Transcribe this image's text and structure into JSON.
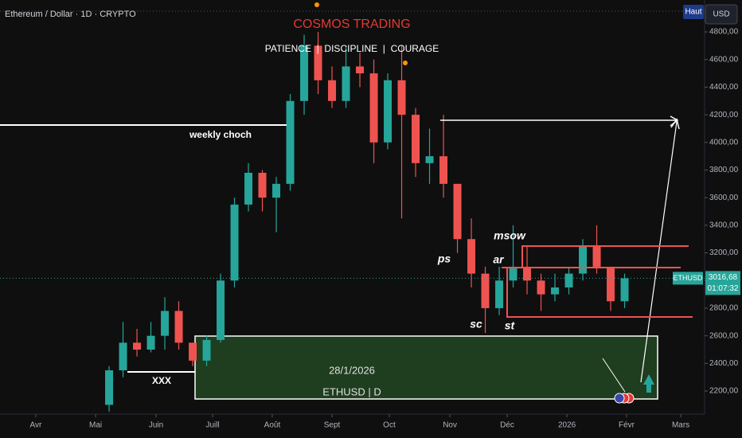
{
  "header": {
    "symbol_title": "Ethereum / Dollar · 1D · CRYPTO",
    "scale_button": "Haut",
    "currency": "USD"
  },
  "chart_data": {
    "type": "candlestick",
    "title": "COSMOS TRADING",
    "subtitle": "PATIENCE  |  DISCIPLINE  |  COURAGE",
    "up_color": "#26a69a",
    "down_color": "#ef5350",
    "open": [
      2100,
      2350,
      2550,
      2500,
      2600,
      2780,
      2550,
      2420,
      2570,
      3000,
      3550,
      3780,
      3600,
      3700,
      4300,
      4700,
      4450,
      4300,
      4550,
      4500,
      4000,
      4450,
      4200,
      3850,
      3900,
      3700,
      3300,
      3050,
      2800,
      3000,
      3100,
      3000,
      2900,
      2950,
      3050,
      3250,
      3100,
      2850
    ],
    "high": [
      2380,
      2700,
      2650,
      2700,
      2880,
      2850,
      2550,
      2600,
      3050,
      3600,
      3850,
      3800,
      3750,
      4350,
      4780,
      4800,
      4550,
      4700,
      4650,
      4600,
      4500,
      4700,
      4250,
      4100,
      4200,
      3700,
      3450,
      3100,
      3100,
      3400,
      3250,
      3050,
      3050,
      3100,
      3300,
      3400,
      3100,
      3050
    ],
    "low": [
      2050,
      2300,
      2450,
      2480,
      2500,
      2500,
      2380,
      2380,
      2550,
      2950,
      3500,
      3500,
      3350,
      3650,
      4200,
      4350,
      4250,
      4250,
      4400,
      3850,
      3950,
      3450,
      3750,
      3700,
      3600,
      3200,
      2950,
      2620,
      2750,
      2950,
      2900,
      2780,
      2850,
      2900,
      3000,
      3050,
      2780,
      2800
    ],
    "close": [
      2350,
      2550,
      2500,
      2600,
      2780,
      2550,
      2420,
      2570,
      3000,
      3550,
      3780,
      3600,
      3700,
      4300,
      4700,
      4450,
      4300,
      4550,
      4500,
      4000,
      4450,
      4200,
      3850,
      3900,
      3700,
      3300,
      3050,
      2800,
      3000,
      3100,
      3000,
      2900,
      2950,
      3050,
      3250,
      3100,
      2850,
      3016.68
    ],
    "xlim": [
      -7.83,
      42.74
    ],
    "xticks": [
      {
        "value": -5.26,
        "label": "Avr"
      },
      {
        "value": -0.97,
        "label": "Mai"
      },
      {
        "value": 3.37,
        "label": "Juin"
      },
      {
        "value": 7.43,
        "label": "Juill"
      },
      {
        "value": 11.71,
        "label": "Août"
      },
      {
        "value": 16,
        "label": "Sept"
      },
      {
        "value": 20.11,
        "label": "Oct"
      },
      {
        "value": 24.46,
        "label": "Nov"
      },
      {
        "value": 28.57,
        "label": "Déc"
      },
      {
        "value": 32.86,
        "label": "2026"
      },
      {
        "value": 37.14,
        "label": "Févr"
      },
      {
        "value": 41.03,
        "label": "Mars"
      }
    ],
    "ylim": [
      2033,
      5031
    ],
    "yticks": [
      {
        "value": 2200,
        "label": "2200,00"
      },
      {
        "value": 2400,
        "label": "2400,00"
      },
      {
        "value": 2600,
        "label": "2600,00"
      },
      {
        "value": 2800,
        "label": "2800,00"
      },
      {
        "value": 3000,
        "label": "3000,00"
      },
      {
        "value": 3200,
        "label": "3200,00"
      },
      {
        "value": 3400,
        "label": "3400,00"
      },
      {
        "value": 3600,
        "label": "3600,00"
      },
      {
        "value": 3800,
        "label": "3800,00"
      },
      {
        "value": 4000,
        "label": "4000,00"
      },
      {
        "value": 4200,
        "label": "4200,00"
      },
      {
        "value": 4400,
        "label": "4400,00"
      },
      {
        "value": 4600,
        "label": "4600,00"
      },
      {
        "value": 4800,
        "label": "4800,00"
      }
    ],
    "last_price": {
      "value": 3016.68,
      "label": "3016,68"
    },
    "price_tag": {
      "symbol": "ETHUSD",
      "countdown": "01:07:32"
    },
    "annotations": {
      "weekly_choch": "weekly choch",
      "ps": "ps",
      "sc": "sc",
      "st": "st",
      "ar": "ar",
      "msow": "msow",
      "xxx": "XXX",
      "date": "28/1/2026",
      "box_label": "ETHUSD | D"
    }
  }
}
